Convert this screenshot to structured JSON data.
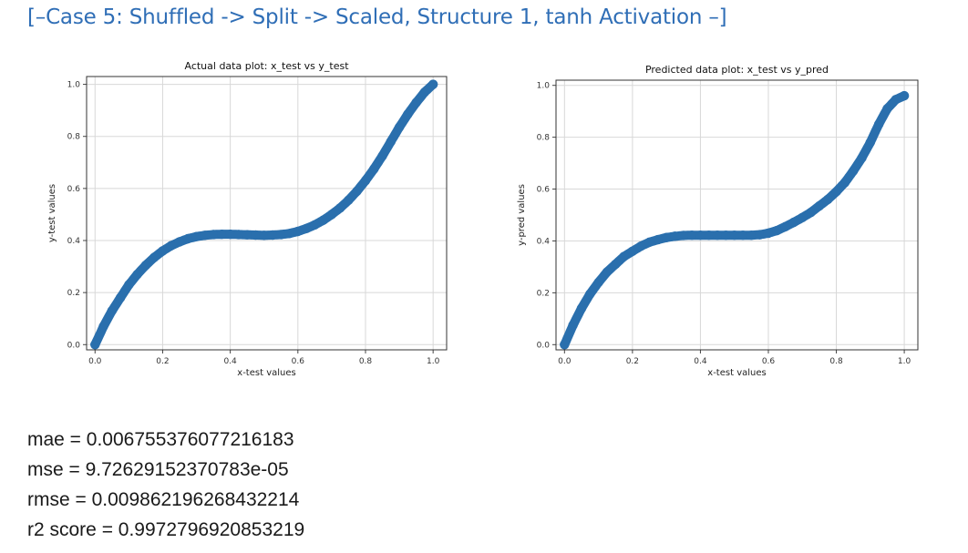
{
  "page": {
    "title": "[–Case 5: Shuffled -> Split -> Scaled, Structure 1, tanh Activation –]"
  },
  "metrics": {
    "mae": "mae = 0.006755376077216183",
    "mse": "mse = 9.72629152370783e-05",
    "rmse": "rmse = 0.009862196268432214",
    "r2": "r2 score = 0.9972796920853219"
  },
  "colors": {
    "series": "#2a6fad",
    "title": "#2f6eb6",
    "grid": "#d8d8d8"
  },
  "chart_data": [
    {
      "type": "scatter",
      "title": "Actual data plot: x_test vs y_test",
      "xlabel": "x-test values",
      "ylabel": "y-test values",
      "xlim": [
        -0.025,
        1.04
      ],
      "ylim": [
        -0.02,
        1.03
      ],
      "xticks": [
        "0.0",
        "0.2",
        "0.4",
        "0.6",
        "0.8",
        "1.0"
      ],
      "yticks": [
        "0.0",
        "0.2",
        "0.4",
        "0.6",
        "0.8",
        "1.0"
      ],
      "grid": true,
      "x": [
        0.0,
        0.025,
        0.05,
        0.075,
        0.1,
        0.125,
        0.15,
        0.175,
        0.2,
        0.225,
        0.25,
        0.275,
        0.3,
        0.325,
        0.35,
        0.375,
        0.4,
        0.425,
        0.45,
        0.475,
        0.5,
        0.525,
        0.55,
        0.575,
        0.6,
        0.625,
        0.65,
        0.675,
        0.7,
        0.725,
        0.75,
        0.775,
        0.8,
        0.825,
        0.85,
        0.875,
        0.9,
        0.925,
        0.95,
        0.975,
        1.0
      ],
      "y": [
        0.0,
        0.07,
        0.13,
        0.18,
        0.23,
        0.27,
        0.305,
        0.335,
        0.36,
        0.38,
        0.395,
        0.407,
        0.415,
        0.42,
        0.423,
        0.424,
        0.424,
        0.423,
        0.422,
        0.421,
        0.42,
        0.421,
        0.423,
        0.427,
        0.435,
        0.446,
        0.46,
        0.478,
        0.5,
        0.525,
        0.555,
        0.59,
        0.63,
        0.675,
        0.725,
        0.78,
        0.835,
        0.885,
        0.93,
        0.97,
        1.0
      ]
    },
    {
      "type": "scatter",
      "title": "Predicted data plot: x_test vs y_pred",
      "xlabel": "x-test values",
      "ylabel": "y-pred values",
      "xlim": [
        -0.025,
        1.04
      ],
      "ylim": [
        -0.02,
        1.02
      ],
      "xticks": [
        "0.0",
        "0.2",
        "0.4",
        "0.6",
        "0.8",
        "1.0"
      ],
      "yticks": [
        "0.0",
        "0.2",
        "0.4",
        "0.6",
        "0.8",
        "1.0"
      ],
      "grid": true,
      "x": [
        0.0,
        0.025,
        0.05,
        0.075,
        0.1,
        0.125,
        0.15,
        0.175,
        0.2,
        0.225,
        0.25,
        0.275,
        0.3,
        0.325,
        0.35,
        0.375,
        0.4,
        0.425,
        0.45,
        0.475,
        0.5,
        0.525,
        0.55,
        0.575,
        0.6,
        0.625,
        0.65,
        0.675,
        0.7,
        0.725,
        0.75,
        0.775,
        0.8,
        0.825,
        0.85,
        0.875,
        0.9,
        0.925,
        0.95,
        0.975,
        1.0
      ],
      "y": [
        0.0,
        0.075,
        0.14,
        0.195,
        0.24,
        0.28,
        0.31,
        0.34,
        0.36,
        0.38,
        0.395,
        0.405,
        0.413,
        0.418,
        0.421,
        0.422,
        0.422,
        0.422,
        0.422,
        0.422,
        0.422,
        0.422,
        0.422,
        0.424,
        0.43,
        0.44,
        0.455,
        0.472,
        0.49,
        0.51,
        0.535,
        0.56,
        0.59,
        0.625,
        0.67,
        0.72,
        0.78,
        0.85,
        0.91,
        0.945,
        0.96
      ]
    }
  ]
}
